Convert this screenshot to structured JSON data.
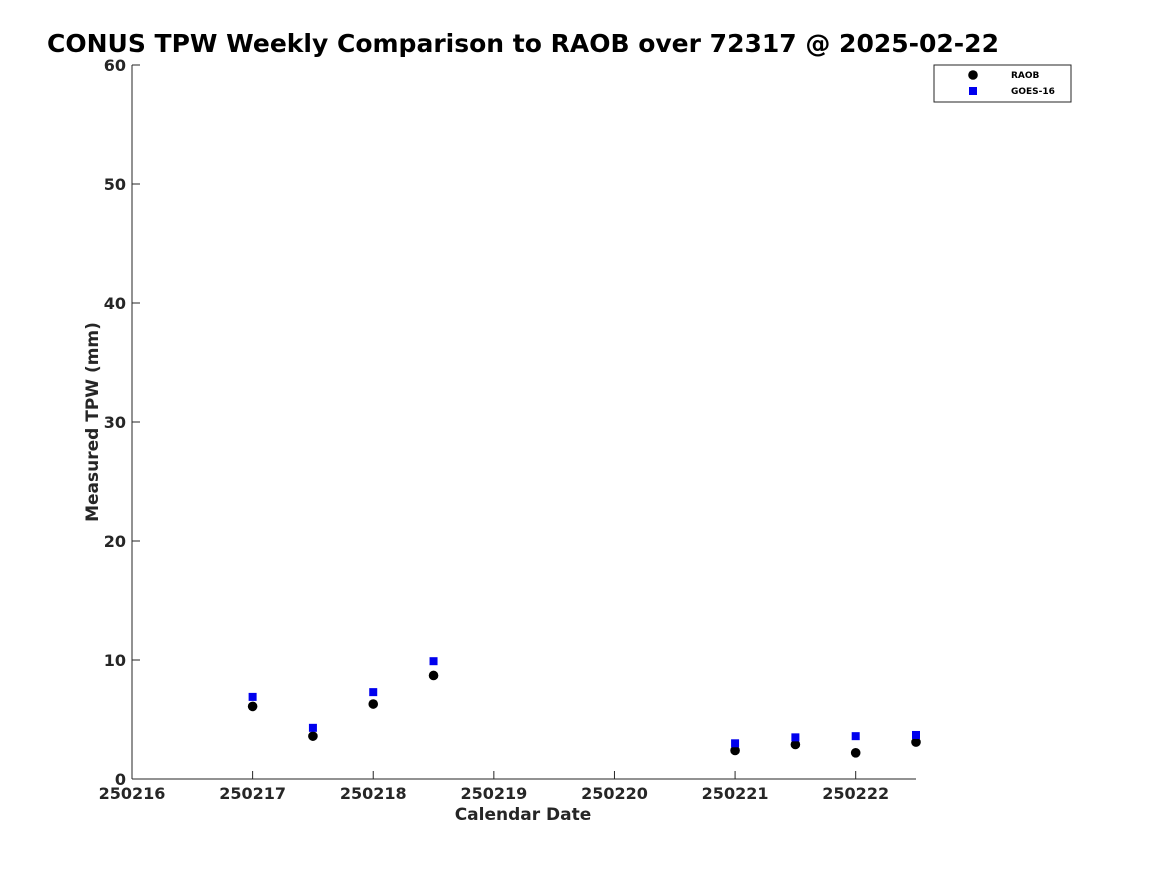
{
  "chart_data": {
    "type": "scatter",
    "title": "CONUS TPW Weekly Comparison to RAOB over 72317 @ 2025-02-22",
    "xlabel": "Calendar Date",
    "ylabel": "Measured TPW (mm)",
    "xlim": [
      250216,
      250222.5
    ],
    "ylim": [
      0,
      60
    ],
    "x_ticks": [
      250216,
      250217,
      250218,
      250219,
      250220,
      250221,
      250222
    ],
    "x_tick_labels": [
      "250216",
      "250217",
      "250218",
      "250219",
      "250220",
      "250221",
      "250222"
    ],
    "y_ticks": [
      0,
      10,
      20,
      30,
      40,
      50,
      60
    ],
    "y_tick_labels": [
      "0",
      "10",
      "20",
      "30",
      "40",
      "50",
      "60"
    ],
    "grid": false,
    "legend_position": "top-right",
    "series": [
      {
        "name": "RAOB",
        "marker": "circle",
        "color": "#000000",
        "x": [
          250217,
          250217.5,
          250218,
          250218.5,
          250221,
          250221.5,
          250222,
          250222.5
        ],
        "y": [
          6.1,
          3.6,
          6.3,
          8.7,
          2.4,
          2.9,
          2.2,
          3.1
        ]
      },
      {
        "name": "GOES-16",
        "marker": "square",
        "color": "#0000ee",
        "x": [
          250217,
          250217.5,
          250218,
          250218.5,
          250221,
          250221.5,
          250222,
          250222.5
        ],
        "y": [
          6.9,
          4.3,
          7.3,
          9.9,
          3.0,
          3.5,
          3.6,
          3.7
        ]
      }
    ]
  }
}
